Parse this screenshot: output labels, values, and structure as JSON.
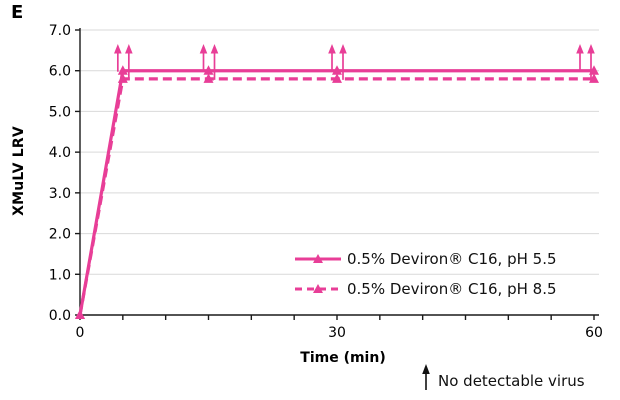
{
  "panel_label": "E",
  "note": {
    "text": "No detectable virus"
  },
  "chart_data": {
    "type": "line",
    "title": "",
    "xlabel": "Time (min)",
    "ylabel": "XMuLV LRV",
    "xlim": [
      0,
      60
    ],
    "ylim": [
      0,
      7
    ],
    "xticks_labeled": [
      0,
      30,
      60
    ],
    "xtick_minor_step": 5,
    "yticks": [
      0,
      1,
      2,
      3,
      4,
      5,
      6,
      7
    ],
    "grid": "horizontal",
    "legend_position": "inside-lower-right",
    "x": [
      0,
      5,
      15,
      30,
      60
    ],
    "series": [
      {
        "name": "0.5% Deviron® C16, pH 5.5",
        "style": "solid",
        "marker": "triangle",
        "values": [
          0,
          6.0,
          6.0,
          6.0,
          6.0
        ]
      },
      {
        "name": "0.5% Deviron® C16, pH 8.5",
        "style": "dashed",
        "marker": "triangle",
        "values": [
          0,
          5.8,
          5.8,
          5.8,
          5.8
        ]
      }
    ],
    "annotations": {
      "no_detect_arrow_x": [
        5,
        15,
        30,
        60
      ],
      "arrow_meaning": "No detectable virus"
    },
    "colors": {
      "series_pink": "#E83E97",
      "grid": "#D9D9D9",
      "axis": "#1A1A1A",
      "text": "#000000"
    }
  }
}
